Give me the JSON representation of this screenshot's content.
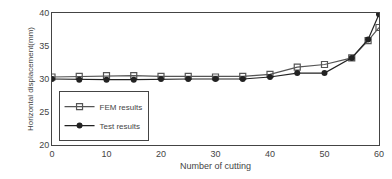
{
  "chart_data": {
    "type": "line",
    "x": [
      0,
      5,
      10,
      15,
      20,
      25,
      30,
      35,
      40,
      45,
      50,
      55,
      58,
      60
    ],
    "series": [
      {
        "name": "FEM results",
        "color": "#555555",
        "marker": "square-open",
        "values": [
          30.3,
          30.4,
          30.5,
          30.5,
          30.4,
          30.4,
          30.3,
          30.4,
          30.7,
          31.8,
          32.2,
          33.2,
          35.8,
          37.8
        ]
      },
      {
        "name": "Test results",
        "color": "#222222",
        "marker": "circle",
        "values": [
          30.0,
          29.9,
          29.9,
          29.9,
          30.0,
          30.0,
          30.0,
          30.0,
          30.3,
          30.9,
          30.9,
          33.2,
          36.0,
          39.8
        ]
      }
    ],
    "xlabel": "Number of cutting",
    "ylabel": "Horizontal displacement(mm)",
    "xlim": [
      0,
      60
    ],
    "ylim": [
      20,
      40
    ],
    "xticks": [
      0,
      10,
      20,
      30,
      40,
      50,
      60
    ],
    "yticks": [
      20,
      25,
      30,
      35,
      40
    ],
    "grid": false,
    "legend": "lower left"
  }
}
